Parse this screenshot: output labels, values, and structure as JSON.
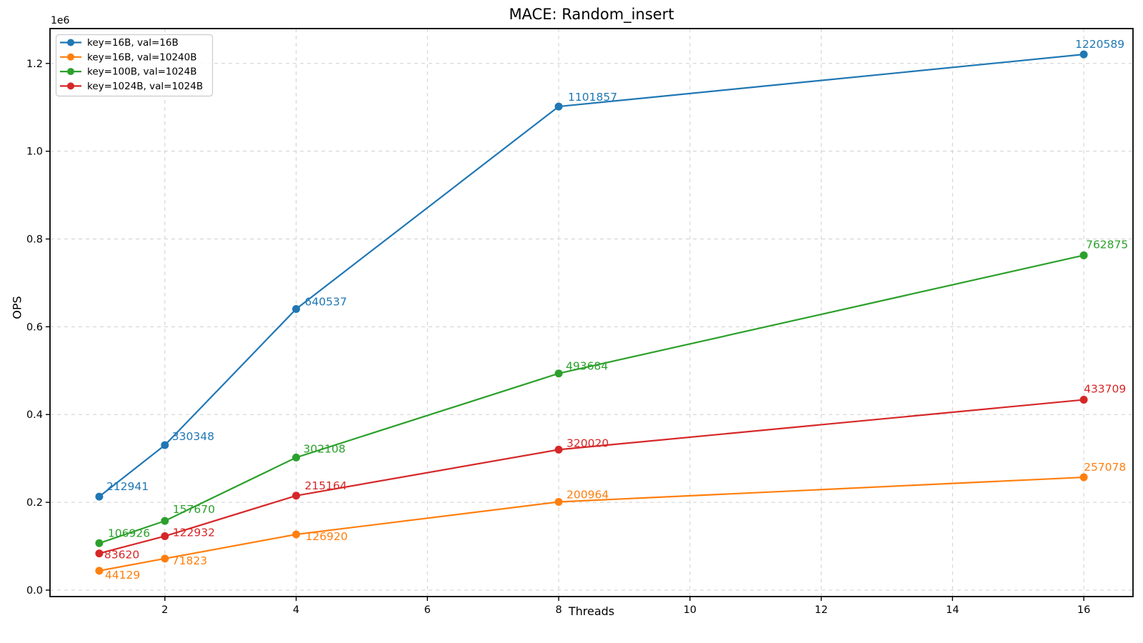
{
  "chart_data": {
    "type": "line",
    "title": "MACE: Random_insert",
    "xlabel": "Threads",
    "ylabel": "OPS",
    "ytick_multiplier": "1e6",
    "x": [
      1,
      2,
      4,
      8,
      16
    ],
    "series": [
      {
        "name": "key=16B, val=16B",
        "color": "#1f77b4",
        "values": [
          212941,
          330348,
          640537,
          1101857,
          1220589
        ]
      },
      {
        "name": "key=16B, val=10240B",
        "color": "#ff7f0e",
        "values": [
          44129,
          71823,
          126920,
          200964,
          257078
        ]
      },
      {
        "name": "key=100B, val=1024B",
        "color": "#2ca02c",
        "values": [
          106926,
          157670,
          302108,
          493684,
          762875
        ]
      },
      {
        "name": "key=1024B, val=1024B",
        "color": "#d62728",
        "values": [
          83620,
          122932,
          215164,
          320020,
          433709
        ]
      }
    ],
    "point_labels_visible": true,
    "xtick_values": [
      2,
      4,
      6,
      8,
      10,
      12,
      14,
      16
    ],
    "xtick_labels": [
      "2",
      "4",
      "6",
      "8",
      "10",
      "12",
      "14",
      "16"
    ],
    "ytick_values": [
      0,
      200000,
      400000,
      600000,
      800000,
      1000000,
      1200000
    ],
    "ytick_labels": [
      "0.0",
      "0.2",
      "0.4",
      "0.6",
      "0.8",
      "1.0",
      "1.2"
    ],
    "xlim": [
      0.25,
      16.75
    ],
    "ylim": [
      -14694,
      1279412
    ],
    "grid": true,
    "grid_style": "dashed",
    "legend_position": "upper left",
    "marker": "circle",
    "colors": {
      "axes": "#000000",
      "grid": "#cfcfcf",
      "legend_border": "#cccccc",
      "background": "#ffffff"
    }
  }
}
